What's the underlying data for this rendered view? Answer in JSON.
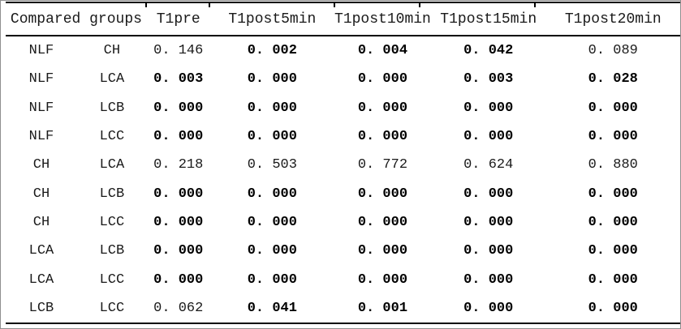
{
  "window": {
    "background_color": "#ffffff",
    "frame_border_color": "#8f8f8f",
    "rule_color": "#000000"
  },
  "table": {
    "header": {
      "compared_groups": "Compared groups",
      "columns": [
        "T1pre",
        "T1post5min",
        "T1post10min",
        "T1post15min",
        "T1post20min"
      ]
    },
    "rows": [
      {
        "group1": "NLF",
        "group2": "CH",
        "values": [
          {
            "text": "0. 146",
            "bold": false
          },
          {
            "text": "0. 002",
            "bold": true
          },
          {
            "text": "0. 004",
            "bold": true
          },
          {
            "text": "0. 042",
            "bold": true
          },
          {
            "text": "0. 089",
            "bold": false
          }
        ]
      },
      {
        "group1": "NLF",
        "group2": "LCA",
        "values": [
          {
            "text": "0. 003",
            "bold": true
          },
          {
            "text": "0. 000",
            "bold": true
          },
          {
            "text": "0. 000",
            "bold": true
          },
          {
            "text": "0. 003",
            "bold": true
          },
          {
            "text": "0. 028",
            "bold": true
          }
        ]
      },
      {
        "group1": "NLF",
        "group2": "LCB",
        "values": [
          {
            "text": "0. 000",
            "bold": true
          },
          {
            "text": "0. 000",
            "bold": true
          },
          {
            "text": "0. 000",
            "bold": true
          },
          {
            "text": "0. 000",
            "bold": true
          },
          {
            "text": "0. 000",
            "bold": true
          }
        ]
      },
      {
        "group1": "NLF",
        "group2": "LCC",
        "values": [
          {
            "text": "0. 000",
            "bold": true
          },
          {
            "text": "0. 000",
            "bold": true
          },
          {
            "text": "0. 000",
            "bold": true
          },
          {
            "text": "0. 000",
            "bold": true
          },
          {
            "text": "0. 000",
            "bold": true
          }
        ]
      },
      {
        "group1": "CH",
        "group2": "LCA",
        "values": [
          {
            "text": "0. 218",
            "bold": false
          },
          {
            "text": "0. 503",
            "bold": false
          },
          {
            "text": "0. 772",
            "bold": false
          },
          {
            "text": "0. 624",
            "bold": false
          },
          {
            "text": "0. 880",
            "bold": false
          }
        ]
      },
      {
        "group1": "CH",
        "group2": "LCB",
        "values": [
          {
            "text": "0. 000",
            "bold": true
          },
          {
            "text": "0. 000",
            "bold": true
          },
          {
            "text": "0. 000",
            "bold": true
          },
          {
            "text": "0. 000",
            "bold": true
          },
          {
            "text": "0. 000",
            "bold": true
          }
        ]
      },
      {
        "group1": "CH",
        "group2": "LCC",
        "values": [
          {
            "text": "0. 000",
            "bold": true
          },
          {
            "text": "0. 000",
            "bold": true
          },
          {
            "text": "0. 000",
            "bold": true
          },
          {
            "text": "0. 000",
            "bold": true
          },
          {
            "text": "0. 000",
            "bold": true
          }
        ]
      },
      {
        "group1": "LCA",
        "group2": "LCB",
        "values": [
          {
            "text": "0. 000",
            "bold": true
          },
          {
            "text": "0. 000",
            "bold": true
          },
          {
            "text": "0. 000",
            "bold": true
          },
          {
            "text": "0. 000",
            "bold": true
          },
          {
            "text": "0. 000",
            "bold": true
          }
        ]
      },
      {
        "group1": "LCA",
        "group2": "LCC",
        "values": [
          {
            "text": "0. 000",
            "bold": true
          },
          {
            "text": "0. 000",
            "bold": true
          },
          {
            "text": "0. 000",
            "bold": true
          },
          {
            "text": "0. 000",
            "bold": true
          },
          {
            "text": "0. 000",
            "bold": true
          }
        ]
      },
      {
        "group1": "LCB",
        "group2": "LCC",
        "values": [
          {
            "text": "0. 062",
            "bold": false
          },
          {
            "text": "0. 041",
            "bold": true
          },
          {
            "text": "0. 001",
            "bold": true
          },
          {
            "text": "0. 000",
            "bold": true
          },
          {
            "text": "0. 000",
            "bold": true
          }
        ]
      }
    ]
  }
}
